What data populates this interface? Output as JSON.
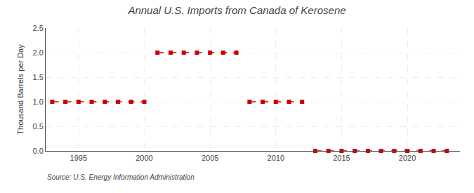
{
  "chart_data": {
    "type": "line",
    "title": "Annual U.S. Imports from Canada of Kerosene",
    "ylabel": "Thousand Barrels per Day",
    "annotations": [
      "Source: U.S. Energy Information Administration"
    ],
    "color": "#cc0000",
    "marker": "square",
    "line_style": "dash",
    "series": [
      {
        "x": [
          1993,
          1994,
          1995,
          1996,
          1997,
          1998,
          1999,
          2000
        ],
        "values": [
          1.0,
          1.0,
          1.0,
          1.0,
          1.0,
          1.0,
          1.0,
          1.0
        ]
      },
      {
        "x": [
          2001,
          2002,
          2003,
          2004,
          2005,
          2006,
          2007
        ],
        "values": [
          2.0,
          2.0,
          2.0,
          2.0,
          2.0,
          2.0,
          2.0
        ]
      },
      {
        "x": [
          2008,
          2009,
          2010,
          2011,
          2012
        ],
        "values": [
          1.0,
          1.0,
          1.0,
          1.0,
          1.0
        ]
      },
      {
        "x": [
          2013,
          2014,
          2015,
          2016,
          2017,
          2018,
          2019,
          2020,
          2021,
          2022,
          2023
        ],
        "values": [
          0.0,
          0.0,
          0.0,
          0.0,
          0.0,
          0.0,
          0.0,
          0.0,
          0.0,
          0.0,
          0.0
        ]
      }
    ],
    "xlim": [
      1992.5,
      2024
    ],
    "xticks": [
      1995,
      2000,
      2005,
      2010,
      2015,
      2020
    ],
    "ylim": [
      0.0,
      2.5
    ],
    "yticks": [
      {
        "value": 0.0,
        "label": "0.0"
      },
      {
        "value": 0.5,
        "label": "0.5"
      },
      {
        "value": 1.0,
        "label": "1.0"
      },
      {
        "value": 1.5,
        "label": "1.5"
      },
      {
        "value": 2.0,
        "label": "2.0"
      },
      {
        "value": 2.5,
        "label": "2.5"
      }
    ],
    "grid": true
  }
}
